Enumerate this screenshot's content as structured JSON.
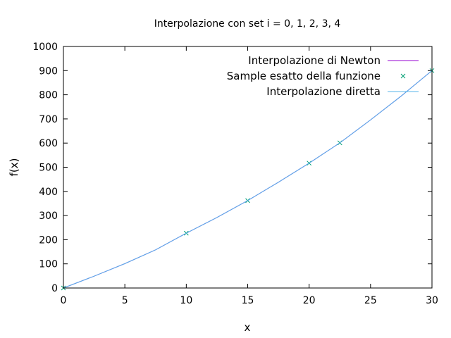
{
  "chart_data": {
    "type": "line",
    "title": "Interpolazione con set i = 0, 1, 2, 3, 4",
    "xlabel": "x",
    "ylabel": "f(x)",
    "xlim": [
      0,
      30
    ],
    "ylim": [
      0,
      1000
    ],
    "xticks": [
      0,
      5,
      10,
      15,
      20,
      25,
      30
    ],
    "yticks": [
      0,
      100,
      200,
      300,
      400,
      500,
      600,
      700,
      800,
      900,
      1000
    ],
    "grid": false,
    "legend_position": "top-right",
    "series": [
      {
        "name": "Interpolazione di Newton",
        "style": "line",
        "color": "#9400d3",
        "x": [
          0,
          2.5,
          5,
          7.5,
          10,
          12.5,
          15,
          17.5,
          20,
          22.5,
          25,
          27.5,
          30
        ],
        "y": [
          0,
          49,
          101,
          158,
          227,
          292,
          362,
          438,
          517,
          601,
          696,
          795,
          900
        ]
      },
      {
        "name": "Sample esatto della funzione",
        "style": "points",
        "marker": "x",
        "color": "#009e73",
        "x": [
          0,
          10,
          15,
          20,
          22.5,
          30
        ],
        "y": [
          0,
          227,
          362,
          517,
          601,
          900
        ]
      },
      {
        "name": "Interpolazione diretta",
        "style": "line",
        "color": "#56b4e9",
        "x": [
          0,
          2.5,
          5,
          7.5,
          10,
          12.5,
          15,
          17.5,
          20,
          22.5,
          25,
          27.5,
          30
        ],
        "y": [
          0,
          49,
          101,
          158,
          227,
          292,
          362,
          438,
          517,
          601,
          696,
          795,
          900
        ]
      }
    ]
  }
}
